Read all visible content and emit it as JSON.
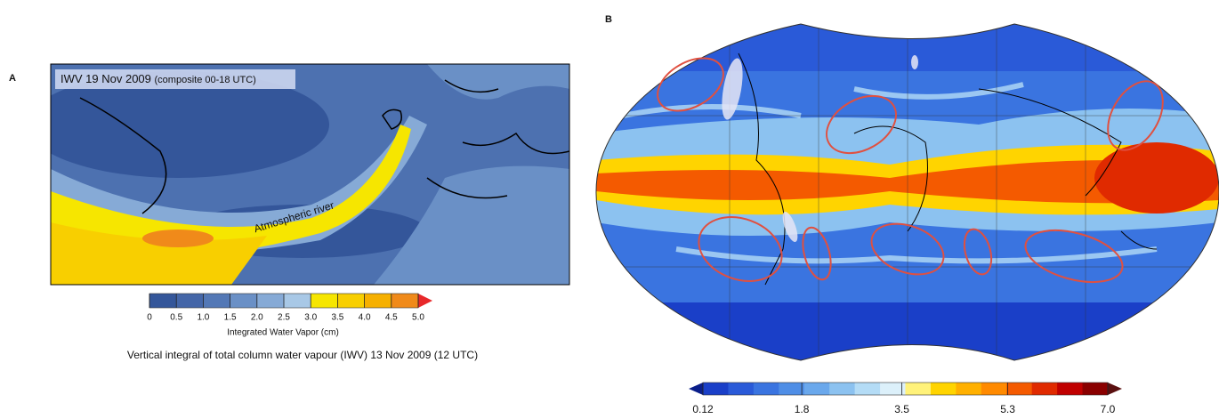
{
  "panels": [
    {
      "label": "A",
      "title": "IWV 19 Nov 2009",
      "title_note": "(composite 00-18 UTC)",
      "annotation": "Atmospheric river",
      "colorbar": {
        "label": "Integrated Water Vapor (cm)",
        "lim": [
          0,
          5
        ],
        "ticks": [
          0,
          0.5,
          {
            "value": 1,
            "label": "1.0"
          },
          1.5,
          {
            "value": 2,
            "label": "2.0"
          },
          2.5,
          {
            "value": 3,
            "label": "3.0"
          },
          3.5,
          {
            "value": 4,
            "label": "4.0"
          },
          4.5,
          {
            "value": 5,
            "label": "5.0"
          }
        ],
        "colors": [
          "#34569a",
          "#4466a8",
          "#5378b6",
          "#6a90c6",
          "#86aad6",
          "#a8c8e6",
          "#f6e600",
          "#f8cf00",
          "#f6b000",
          "#f08a1a"
        ],
        "extend_max_color": "#e8282a"
      },
      "caption": "Vertical integral of total column water vapour (IWV) 13 Nov 2009 (12 UTC)"
    },
    {
      "label": "B",
      "colorbar": {
        "lim": [
          0.12,
          7.0
        ],
        "ticks": [
          0.12,
          1.8,
          3.5,
          5.3,
          {
            "value": 7,
            "label": "7.0"
          }
        ],
        "colors": [
          "#1a3fc8",
          "#2a5ad8",
          "#3a74e0",
          "#4f8ee6",
          "#6aa8ec",
          "#8cc2f0",
          "#b4dcf6",
          "#dcf0fa",
          "#fff27a",
          "#ffd400",
          "#ffb000",
          "#ff8a00",
          "#f45a00",
          "#e02a00",
          "#c00000",
          "#8a0000"
        ],
        "extend_min_color": "#0a1e8a",
        "extend_max_color": "#5a1010"
      }
    }
  ]
}
